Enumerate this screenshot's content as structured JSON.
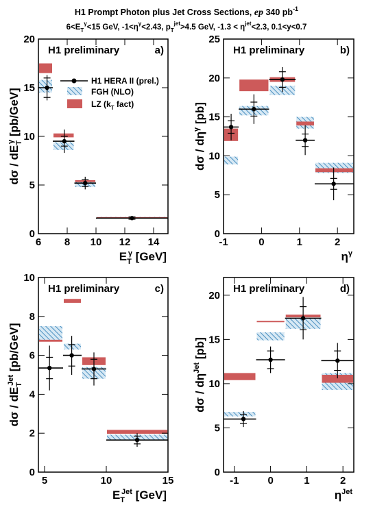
{
  "header": {
    "title": "H1 Prompt Photon plus Jet Cross Sections, ep 340 pb⁻¹",
    "subtitle": "6<E_Tγ<15 GeV, -1<ηγ<2.43, p_T^jet>4.5 GeV, -1.3<η^jet<2.3, 0.1<y<0.7"
  },
  "legend": {
    "data_label": "H1 HERA II (prel.)",
    "fgh_label": "FGH (NLO)",
    "lz_label": "LZ (k_T fact)"
  },
  "colors": {
    "lz": "#cd5a5a",
    "fgh": "#4a8fc0",
    "fgh_bg": "#d6e8f4",
    "data": "#000000"
  },
  "chart_data": [
    {
      "type": "scatter",
      "panel": "a)",
      "label": "H1 preliminary",
      "xlabel": "E_T^γ [GeV]",
      "ylabel": "dσ / dE_T^γ [pb/GeV]",
      "xlim": [
        6,
        15
      ],
      "ylim": [
        0,
        20
      ],
      "xticks": [
        6,
        8,
        10,
        12,
        14
      ],
      "yticks": [
        0,
        5,
        10,
        15,
        20
      ],
      "bins": [
        [
          6,
          7
        ],
        [
          7,
          8.5
        ],
        [
          8.5,
          10
        ],
        [
          10,
          15
        ]
      ],
      "data": {
        "x": [
          6.6,
          7.8,
          9.25,
          12.5
        ],
        "y": [
          15.0,
          9.5,
          5.2,
          1.6
        ],
        "stat": [
          1.0,
          0.5,
          0.35,
          0.12
        ],
        "tot": [
          1.3,
          1.2,
          0.65,
          0.2
        ]
      },
      "fgh": {
        "lo": [
          14.5,
          8.6,
          4.8,
          1.55
        ],
        "hi": [
          15.8,
          9.4,
          5.3,
          1.72
        ]
      },
      "lz": {
        "lo": [
          16.5,
          9.9,
          5.3,
          1.6
        ],
        "hi": [
          17.5,
          10.3,
          5.5,
          1.7
        ]
      }
    },
    {
      "type": "scatter",
      "panel": "b)",
      "label": "H1 preliminary",
      "xlabel": "ηγ",
      "ylabel": "dσ / dηγ [pb]",
      "xlim": [
        -1,
        2.43
      ],
      "ylim": [
        0,
        25
      ],
      "xticks": [
        -1,
        0,
        1,
        2
      ],
      "yticks": [
        0,
        5,
        10,
        15,
        20,
        25
      ],
      "bins": [
        [
          -1,
          -0.6
        ],
        [
          -0.6,
          0.2
        ],
        [
          0.2,
          0.9
        ],
        [
          0.9,
          1.4
        ],
        [
          1.4,
          2.43
        ]
      ],
      "data": {
        "x": [
          -0.8,
          -0.2,
          0.55,
          1.15,
          1.9
        ],
        "y": [
          13.7,
          16.0,
          19.8,
          12.0,
          6.4
        ],
        "stat": [
          0.8,
          0.9,
          1.0,
          0.8,
          0.7
        ],
        "tot": [
          1.7,
          1.9,
          1.6,
          1.9,
          2.1
        ]
      },
      "fgh": {
        "lo": [
          8.9,
          15.2,
          17.8,
          13.5,
          7.8
        ],
        "hi": [
          9.9,
          16.4,
          19.0,
          15.0,
          9.1
        ]
      },
      "lz": {
        "lo": [
          11.9,
          18.3,
          19.5,
          13.9,
          7.9
        ],
        "hi": [
          13.5,
          19.8,
          20.1,
          14.4,
          8.4
        ]
      }
    },
    {
      "type": "scatter",
      "panel": "c)",
      "label": "H1 preliminary",
      "xlabel": "E_T^jet [GeV]",
      "ylabel": "dσ / dE_T^jet [pb/GeV]",
      "xlim": [
        4.5,
        15
      ],
      "ylim": [
        0,
        10
      ],
      "xticks": [
        5,
        10,
        15
      ],
      "yticks": [
        0,
        2,
        4,
        6,
        8,
        10
      ],
      "bins": [
        [
          4.5,
          6.5
        ],
        [
          6.5,
          8
        ],
        [
          8,
          10
        ],
        [
          10,
          15
        ]
      ],
      "data": {
        "x": [
          5.4,
          7.2,
          9.0,
          12.5
        ],
        "y": [
          5.35,
          6.0,
          5.3,
          1.65
        ],
        "stat": [
          0.55,
          0.55,
          0.5,
          0.2
        ],
        "tot": [
          1.15,
          1.0,
          0.85,
          0.35
        ]
      },
      "fgh": {
        "lo": [
          6.8,
          6.3,
          4.8,
          1.65
        ],
        "hi": [
          7.5,
          6.6,
          5.4,
          1.92
        ]
      },
      "lz": {
        "lo": [
          6.7,
          8.7,
          5.5,
          1.97
        ],
        "hi": [
          6.8,
          8.9,
          5.9,
          2.17
        ]
      }
    },
    {
      "type": "scatter",
      "panel": "d)",
      "label": "H1 preliminary",
      "xlabel": "η^Jet",
      "ylabel": "dσ / dη^Jet [pb]",
      "xlim": [
        -1.3,
        2.3
      ],
      "ylim": [
        0,
        22
      ],
      "xticks": [
        -1,
        0,
        1,
        2
      ],
      "yticks": [
        0,
        5,
        10,
        15,
        20
      ],
      "bins": [
        [
          -1.3,
          -0.4
        ],
        [
          -0.4,
          0.4
        ],
        [
          0.4,
          1.4
        ],
        [
          1.4,
          2.3
        ]
      ],
      "data": {
        "x": [
          -0.75,
          0.0,
          0.9,
          1.85
        ],
        "y": [
          6.0,
          12.7,
          17.4,
          12.6
        ],
        "stat": [
          0.5,
          1.0,
          1.3,
          1.1
        ],
        "tot": [
          0.9,
          1.5,
          2.4,
          2.0
        ]
      },
      "fgh": {
        "lo": [
          6.3,
          14.9,
          16.2,
          9.3
        ],
        "hi": [
          6.8,
          15.8,
          17.4,
          11.2
        ]
      },
      "lz": {
        "lo": [
          10.4,
          17.0,
          17.5,
          10.1
        ],
        "hi": [
          11.2,
          17.1,
          17.8,
          11.0
        ]
      }
    }
  ]
}
